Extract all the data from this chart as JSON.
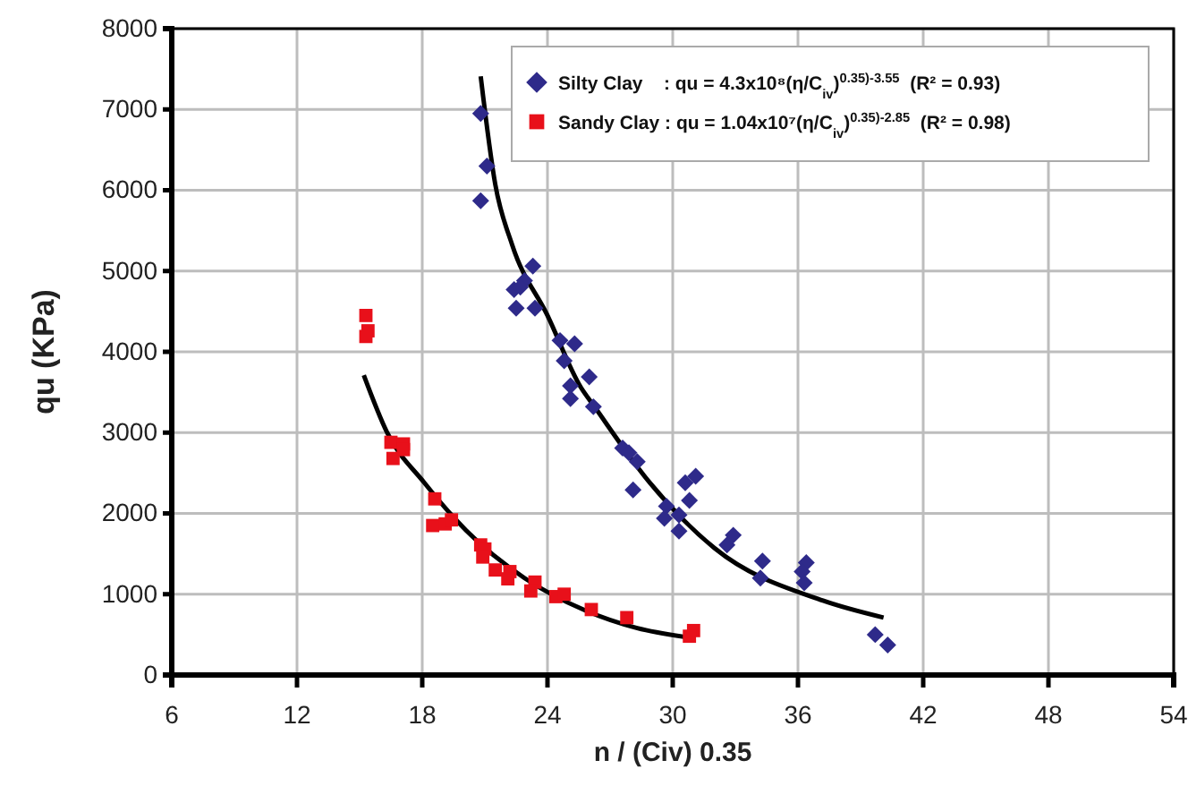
{
  "chart_data": {
    "type": "scatter",
    "xlabel": "n / (Civ) 0.35",
    "ylabel": "qu (KPa)",
    "xlim": [
      6,
      54
    ],
    "xticks": [
      6,
      12,
      18,
      24,
      30,
      36,
      42,
      48,
      54
    ],
    "ylim": [
      0,
      8000
    ],
    "yticks": [
      0,
      1000,
      2000,
      3000,
      4000,
      5000,
      6000,
      7000,
      8000
    ],
    "grid": true,
    "legend": "top right",
    "series": [
      {
        "name": "Silty Clay    : qu = 4.3x10⁸(η/C$_{iv}$)$^{0.35)}$$^{-3.55}$  (R² = 0.93)",
        "marker": "diamond",
        "color": "#2e2a8a",
        "x": [
          20.8,
          21.1,
          20.8,
          23.3,
          22.9,
          22.4,
          22.7,
          22.5,
          23.4,
          24.6,
          25.3,
          24.8,
          26.0,
          25.1,
          25.1,
          26.2,
          27.6,
          27.9,
          28.3,
          28.1,
          29.7,
          29.6,
          30.3,
          30.3,
          30.6,
          31.1,
          30.8,
          32.9,
          32.6,
          34.3,
          34.2,
          36.4,
          36.2,
          36.3,
          39.7,
          40.3
        ],
        "values": [
          6950,
          6300,
          5870,
          5060,
          4880,
          4770,
          4800,
          4540,
          4540,
          4140,
          4100,
          3890,
          3690,
          3580,
          3420,
          3320,
          2810,
          2750,
          2640,
          2290,
          2090,
          1940,
          1980,
          1780,
          2380,
          2460,
          2160,
          1730,
          1610,
          1410,
          1200,
          1390,
          1280,
          1140,
          500,
          370
        ]
      },
      {
        "name": "Sandy Clay : qu = 1.04x10⁷(η/C$_{iv}$)$^{0.35)}$$^{-2.85}$  (R² = 0.98)",
        "marker": "square",
        "color": "#e8101a",
        "x": [
          15.3,
          15.4,
          15.3,
          16.5,
          17.1,
          17.1,
          16.6,
          18.6,
          18.5,
          19.1,
          19.4,
          20.8,
          21.0,
          20.9,
          21.5,
          22.2,
          22.1,
          23.4,
          23.2,
          24.4,
          24.8,
          26.1,
          27.8,
          31.0,
          30.8
        ],
        "values": [
          4450,
          4260,
          4190,
          2880,
          2860,
          2790,
          2680,
          2180,
          1850,
          1870,
          1920,
          1610,
          1560,
          1460,
          1300,
          1280,
          1190,
          1150,
          1040,
          970,
          1000,
          810,
          710,
          550,
          480
        ]
      },
      {
        "type": "line",
        "marker": "none",
        "color": "#000000",
        "x": [
          20.8,
          21.5,
          22.3,
          24.0,
          25.6,
          26.2,
          28.9,
          32.0,
          37.2,
          40.1
        ],
        "values": [
          7410,
          6070,
          5330,
          4450,
          3560,
          3340,
          2380,
          1570,
          920,
          710
        ]
      },
      {
        "type": "line",
        "marker": "none",
        "color": "#000000",
        "x": [
          15.2,
          16.3,
          18.1,
          20.1,
          22.9,
          25.8,
          28.3,
          30.6
        ],
        "values": [
          3710,
          3010,
          2380,
          1790,
          1200,
          800,
          580,
          470
        ]
      }
    ]
  }
}
